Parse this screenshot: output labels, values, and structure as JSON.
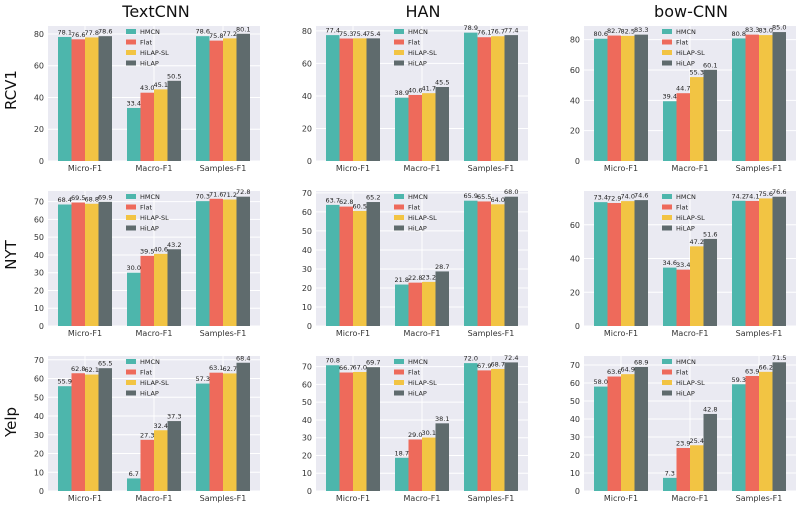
{
  "figure": {
    "column_titles": [
      "TextCNN",
      "HAN",
      "bow-CNN"
    ],
    "row_labels": [
      "RCV1",
      "NYT",
      "Yelp"
    ]
  },
  "colors": {
    "plot_background": "#eaeaf2",
    "grid": "#ffffff",
    "series": [
      "#4db6ac",
      "#ee6a5b",
      "#f2c443",
      "#5f6b6d"
    ]
  },
  "chart_data": [
    {
      "type": "bar",
      "row": 0,
      "col": 0,
      "title": "TextCNN",
      "ylabel": "RCV1",
      "ylim": [
        0,
        85
      ],
      "yticks": [
        0,
        20,
        40,
        60,
        80
      ],
      "categories": [
        "Micro-F1",
        "Macro-F1",
        "Samples-F1"
      ],
      "series": [
        {
          "name": "HMCN",
          "values": [
            78.1,
            33.4,
            78.6
          ]
        },
        {
          "name": "Flat",
          "values": [
            76.6,
            43.0,
            75.8
          ]
        },
        {
          "name": "HiLAP-SL",
          "values": [
            77.8,
            45.1,
            77.2
          ]
        },
        {
          "name": "HiLAP",
          "values": [
            78.6,
            50.5,
            80.1
          ]
        }
      ]
    },
    {
      "type": "bar",
      "row": 0,
      "col": 1,
      "title": "HAN",
      "ylabel": "",
      "ylim": [
        0,
        83
      ],
      "yticks": [
        0,
        20,
        40,
        60,
        80
      ],
      "categories": [
        "Micro-F1",
        "Macro-F1",
        "Samples-F1"
      ],
      "series": [
        {
          "name": "HMCN",
          "values": [
            77.4,
            38.9,
            78.9
          ]
        },
        {
          "name": "Flat",
          "values": [
            75.3,
            40.6,
            76.1
          ]
        },
        {
          "name": "HiLAP-SL",
          "values": [
            75.4,
            41.7,
            76.7
          ]
        },
        {
          "name": "HiLAP",
          "values": [
            75.4,
            45.5,
            77.4
          ]
        }
      ]
    },
    {
      "type": "bar",
      "row": 0,
      "col": 2,
      "title": "bow-CNN",
      "ylabel": "",
      "ylim": [
        0,
        89
      ],
      "yticks": [
        0,
        20,
        40,
        60,
        80
      ],
      "categories": [
        "Micro-F1",
        "Macro-F1",
        "Samples-F1"
      ],
      "series": [
        {
          "name": "HMCN",
          "values": [
            80.6,
            39.4,
            80.8
          ]
        },
        {
          "name": "Flat",
          "values": [
            82.7,
            44.7,
            83.3
          ]
        },
        {
          "name": "HiLAP-SL",
          "values": [
            82.5,
            55.3,
            83.0
          ]
        },
        {
          "name": "HiLAP",
          "values": [
            83.3,
            60.1,
            85.0
          ]
        }
      ]
    },
    {
      "type": "bar",
      "row": 1,
      "col": 0,
      "title": "",
      "ylabel": "NYT",
      "ylim": [
        0,
        76
      ],
      "yticks": [
        0,
        10,
        20,
        30,
        40,
        50,
        60,
        70
      ],
      "categories": [
        "Micro-F1",
        "Macro-F1",
        "Samples-F1"
      ],
      "series": [
        {
          "name": "HMCN",
          "values": [
            68.4,
            30.0,
            70.3
          ]
        },
        {
          "name": "Flat",
          "values": [
            69.5,
            39.5,
            71.6
          ]
        },
        {
          "name": "HiLAP-SL",
          "values": [
            68.8,
            40.6,
            71.2
          ]
        },
        {
          "name": "HiLAP",
          "values": [
            69.9,
            43.2,
            72.8
          ]
        }
      ]
    },
    {
      "type": "bar",
      "row": 1,
      "col": 1,
      "title": "",
      "ylabel": "",
      "ylim": [
        0,
        71
      ],
      "yticks": [
        0,
        10,
        20,
        30,
        40,
        50,
        60,
        70
      ],
      "categories": [
        "Micro-F1",
        "Macro-F1",
        "Samples-F1"
      ],
      "series": [
        {
          "name": "HMCN",
          "values": [
            63.7,
            21.8,
            65.9
          ]
        },
        {
          "name": "Flat",
          "values": [
            62.8,
            22.8,
            65.5
          ]
        },
        {
          "name": "HiLAP-SL",
          "values": [
            60.5,
            23.2,
            64.0
          ]
        },
        {
          "name": "HiLAP",
          "values": [
            65.2,
            28.7,
            68.0
          ]
        }
      ]
    },
    {
      "type": "bar",
      "row": 1,
      "col": 2,
      "title": "",
      "ylabel": "",
      "ylim": [
        0,
        80
      ],
      "yticks": [
        0,
        20,
        40,
        60
      ],
      "categories": [
        "Micro-F1",
        "Macro-F1",
        "Samples-F1"
      ],
      "series": [
        {
          "name": "HMCN",
          "values": [
            73.4,
            34.6,
            74.2
          ]
        },
        {
          "name": "Flat",
          "values": [
            72.9,
            33.4,
            74.1
          ]
        },
        {
          "name": "HiLAP-SL",
          "values": [
            74.0,
            47.2,
            75.6
          ]
        },
        {
          "name": "HiLAP",
          "values": [
            74.6,
            51.6,
            76.6
          ]
        }
      ]
    },
    {
      "type": "bar",
      "row": 2,
      "col": 0,
      "title": "",
      "ylabel": "Yelp",
      "ylim": [
        0,
        72
      ],
      "yticks": [
        0,
        10,
        20,
        30,
        40,
        50,
        60,
        70
      ],
      "categories": [
        "Micro-F1",
        "Macro-F1",
        "Samples-F1"
      ],
      "series": [
        {
          "name": "HMCN",
          "values": [
            55.9,
            6.7,
            57.3
          ]
        },
        {
          "name": "Flat",
          "values": [
            62.8,
            27.3,
            63.1
          ]
        },
        {
          "name": "HiLAP-SL",
          "values": [
            62.1,
            32.4,
            62.7
          ]
        },
        {
          "name": "HiLAP",
          "values": [
            65.5,
            37.3,
            68.4
          ]
        }
      ]
    },
    {
      "type": "bar",
      "row": 2,
      "col": 1,
      "title": "",
      "ylabel": "",
      "ylim": [
        0,
        76
      ],
      "yticks": [
        0,
        10,
        20,
        30,
        40,
        50,
        60,
        70
      ],
      "categories": [
        "Micro-F1",
        "Macro-F1",
        "Samples-F1"
      ],
      "series": [
        {
          "name": "HMCN",
          "values": [
            70.8,
            18.7,
            72.0
          ]
        },
        {
          "name": "Flat",
          "values": [
            66.7,
            29.0,
            67.9
          ]
        },
        {
          "name": "HiLAP-SL",
          "values": [
            67.0,
            30.1,
            68.7
          ]
        },
        {
          "name": "HiLAP",
          "values": [
            69.7,
            38.1,
            72.4
          ]
        }
      ]
    },
    {
      "type": "bar",
      "row": 2,
      "col": 2,
      "title": "",
      "ylabel": "",
      "ylim": [
        0,
        75
      ],
      "yticks": [
        0,
        10,
        20,
        30,
        40,
        50,
        60,
        70
      ],
      "categories": [
        "Micro-F1",
        "Macro-F1",
        "Samples-F1"
      ],
      "series": [
        {
          "name": "HMCN",
          "values": [
            58.0,
            7.3,
            59.3
          ]
        },
        {
          "name": "Flat",
          "values": [
            63.6,
            23.9,
            63.9
          ]
        },
        {
          "name": "HiLAP-SL",
          "values": [
            64.9,
            25.4,
            66.2
          ]
        },
        {
          "name": "HiLAP",
          "values": [
            68.9,
            42.8,
            71.5
          ]
        }
      ]
    }
  ]
}
